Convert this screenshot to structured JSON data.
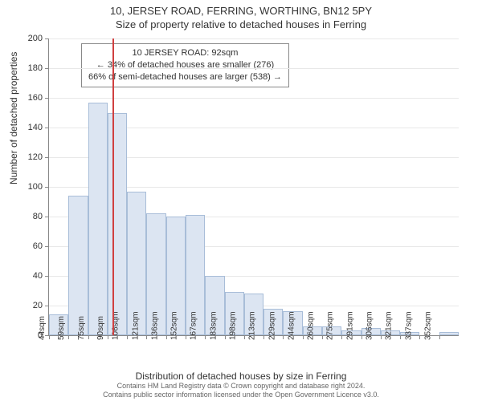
{
  "title": "10, JERSEY ROAD, FERRING, WORTHING, BN12 5PY",
  "subtitle": "Size of property relative to detached houses in Ferring",
  "y_axis_title": "Number of detached properties",
  "x_axis_title": "Distribution of detached houses by size in Ferring",
  "chart": {
    "type": "histogram",
    "ylim": [
      0,
      200
    ],
    "ytick_step": 20,
    "background_color": "#ffffff",
    "grid_color": "#e8e8e8",
    "bar_fill": "#dce5f2",
    "bar_border": "#a8bdd8",
    "axis_color": "#888888",
    "marker_color": "#d04040",
    "marker_value": 92,
    "x_labels": [
      "44sqm",
      "59sqm",
      "75sqm",
      "90sqm",
      "106sqm",
      "121sqm",
      "136sqm",
      "152sqm",
      "167sqm",
      "183sqm",
      "198sqm",
      "213sqm",
      "229sqm",
      "244sqm",
      "260sqm",
      "275sqm",
      "291sqm",
      "306sqm",
      "321sqm",
      "337sqm",
      "352sqm"
    ],
    "values": [
      14,
      94,
      157,
      150,
      97,
      82,
      80,
      81,
      40,
      29,
      28,
      18,
      16,
      6,
      6,
      3,
      5,
      3,
      2,
      0,
      2
    ]
  },
  "annotation": {
    "line1": "10 JERSEY ROAD: 92sqm",
    "line2": "← 34% of detached houses are smaller (276)",
    "line3": "66% of semi-detached houses are larger (538) →"
  },
  "footer": {
    "line1": "Contains HM Land Registry data © Crown copyright and database right 2024.",
    "line2": "Contains public sector information licensed under the Open Government Licence v3.0."
  }
}
